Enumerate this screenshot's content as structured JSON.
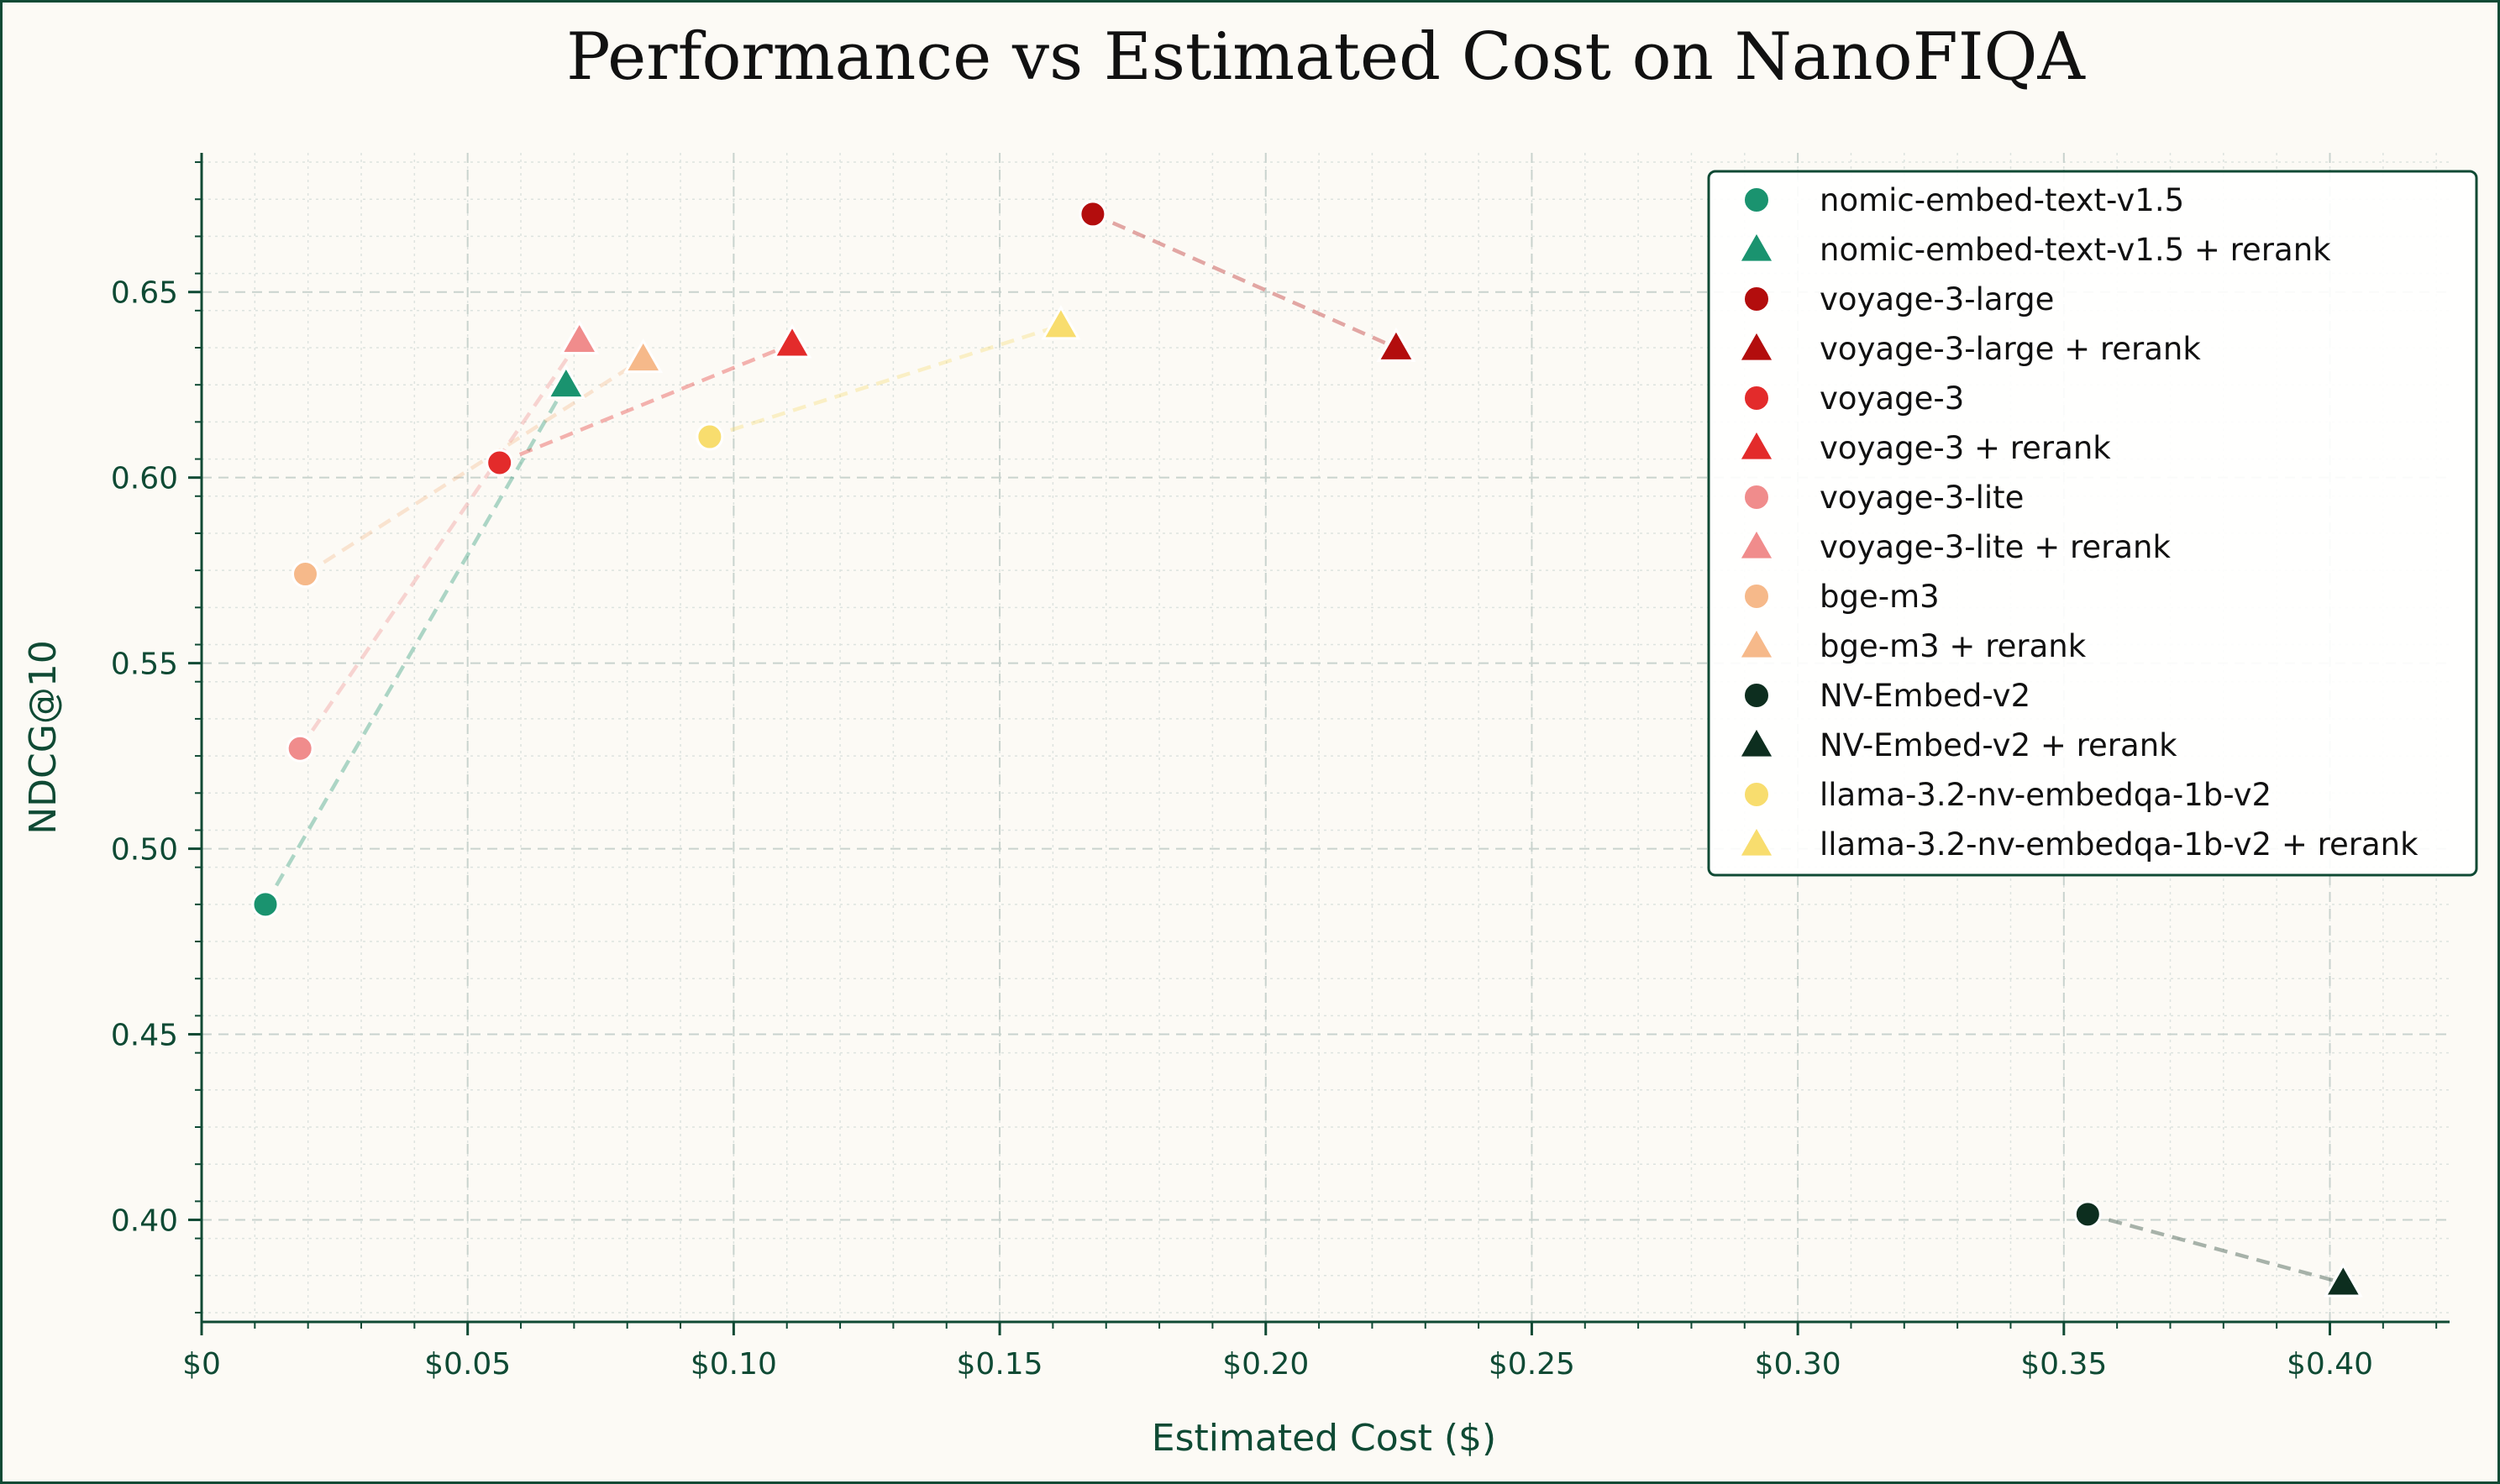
{
  "chart_data": {
    "type": "scatter",
    "title": "Performance vs Estimated Cost on NanoFIQA",
    "xlabel": "Estimated Cost ($)",
    "ylabel": "NDCG@10",
    "xlim": [
      0,
      0.4225
    ],
    "ylim": [
      0.3725,
      0.6875
    ],
    "x_ticks": [
      0,
      0.05,
      0.1,
      0.15,
      0.2,
      0.25,
      0.3,
      0.35,
      0.4
    ],
    "x_tick_labels": [
      "$0",
      "$0.05",
      "$0.10",
      "$0.15",
      "$0.20",
      "$0.25",
      "$0.30",
      "$0.35",
      "$0.40"
    ],
    "y_ticks": [
      0.4,
      0.45,
      0.5,
      0.55,
      0.6,
      0.65
    ],
    "y_tick_labels": [
      "0.40",
      "0.45",
      "0.50",
      "0.55",
      "0.60",
      "0.65"
    ],
    "grid": true,
    "legend_position": "top-right",
    "models": [
      {
        "name": "nomic-embed-text-v1.5",
        "color": "#1a936f",
        "base": {
          "label": "nomic-embed-text-v1.5",
          "x": 0.012,
          "y": 0.485
        },
        "rerank": {
          "label": "nomic-embed-text-v1.5 + rerank",
          "x": 0.0685,
          "y": 0.625
        }
      },
      {
        "name": "voyage-3-large",
        "color": "#b30d0d",
        "base": {
          "label": "voyage-3-large",
          "x": 0.1675,
          "y": 0.671
        },
        "rerank": {
          "label": "voyage-3-large + rerank",
          "x": 0.2245,
          "y": 0.635
        }
      },
      {
        "name": "voyage-3",
        "color": "#e32b2b",
        "base": {
          "label": "voyage-3",
          "x": 0.056,
          "y": 0.604
        },
        "rerank": {
          "label": "voyage-3 + rerank",
          "x": 0.111,
          "y": 0.636
        }
      },
      {
        "name": "voyage-3-lite",
        "color": "#f08c8c",
        "base": {
          "label": "voyage-3-lite",
          "x": 0.0185,
          "y": 0.527
        },
        "rerank": {
          "label": "voyage-3-lite + rerank",
          "x": 0.071,
          "y": 0.637
        }
      },
      {
        "name": "bge-m3",
        "color": "#f6b98a",
        "base": {
          "label": "bge-m3",
          "x": 0.0195,
          "y": 0.574
        },
        "rerank": {
          "label": "bge-m3 + rerank",
          "x": 0.083,
          "y": 0.632
        }
      },
      {
        "name": "NV-Embed-v2",
        "color": "#0d2e1f",
        "base": {
          "label": "NV-Embed-v2",
          "x": 0.3545,
          "y": 0.4015
        },
        "rerank": {
          "label": "NV-Embed-v2 + rerank",
          "x": 0.4025,
          "y": 0.383
        }
      },
      {
        "name": "llama-3.2-nv-embedqa-1b-v2",
        "color": "#f8dd6e",
        "base": {
          "label": "llama-3.2-nv-embedqa-1b-v2",
          "x": 0.0955,
          "y": 0.611
        },
        "rerank": {
          "label": "llama-3.2-nv-embedqa-1b-v2 + rerank",
          "x": 0.1615,
          "y": 0.641
        }
      }
    ]
  }
}
